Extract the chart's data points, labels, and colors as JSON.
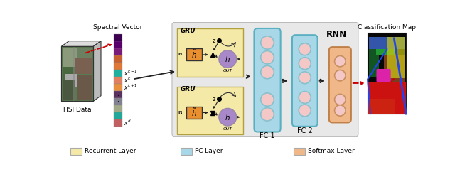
{
  "fig_width": 6.4,
  "fig_height": 2.56,
  "dpi": 100,
  "title_rnn": "RNN",
  "legend_items": [
    {
      "label": "Recurrent Layer",
      "color": "#f5e9a8"
    },
    {
      "label": "FC Layer",
      "color": "#a8d8e8"
    },
    {
      "label": "Softmax Layer",
      "color": "#f0b888"
    }
  ],
  "spectral_colors": [
    "#3d0050",
    "#5a006a",
    "#7a1a7a",
    "#c86030",
    "#e07838",
    "#20b0a0",
    "#e08060",
    "#e89040",
    "#5a3060",
    "#808090",
    "#a0a888",
    "#22a898",
    "#c06060"
  ],
  "gru_box_color": "#f5e9a8",
  "gru_box_edge": "#b0a040",
  "fc1_color": "#a8d8e8",
  "fc2_color": "#a8d8e8",
  "softmax_color": "#f0b888",
  "node_fill": "#f5c8c8",
  "node_edge": "#88c0cc",
  "softmax_node_fill": "#f5c8c8",
  "softmax_node_edge": "#c89060",
  "rnn_bg_color": "#e8e8e8",
  "h_box_color": "#e89030",
  "h_circle_color": "#a888c8",
  "arrow_color": "#222222",
  "red_arrow_color": "#cc0000"
}
